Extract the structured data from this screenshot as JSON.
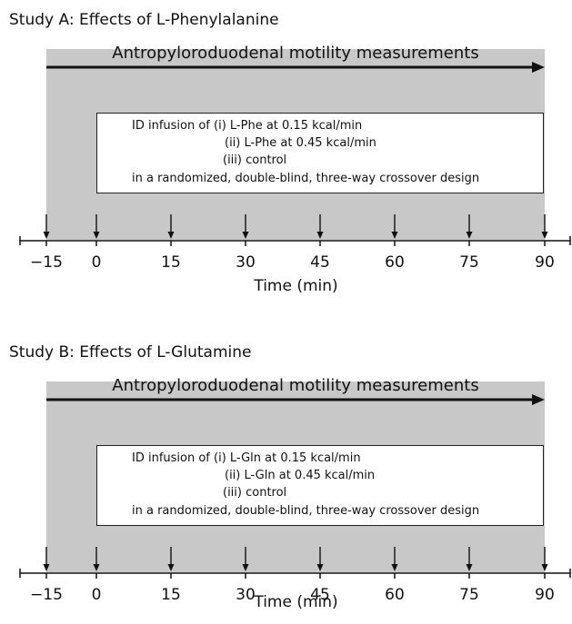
{
  "colors": {
    "band": "#c8c8c8",
    "box_border": "#222222",
    "ink": "#111111"
  },
  "panels": [
    {
      "title": "Study A: Effects of L-Phenylalanine",
      "measurements_label": "Antropyloroduodenal motility measurements",
      "design_lines": [
        "ID infusion of (i) L-Phe at 0.15 kcal/min",
        "(ii) L-Phe at 0.45 kcal/min",
        "(iii) control",
        "in a randomized, double-blind, three-way crossover design"
      ],
      "axis": {
        "tick_labels": [
          "−15",
          "0",
          "15",
          "30",
          "45",
          "60",
          "75",
          "90"
        ],
        "title": "Time (min)"
      }
    },
    {
      "title": "Study B: Effects of L-Glutamine",
      "measurements_label": "Antropyloroduodenal motility measurements",
      "design_lines": [
        "ID infusion of (i) L-Gln at 0.15 kcal/min",
        "(ii) L-Gln at 0.45 kcal/min",
        "(iii) control",
        "in a randomized, double-blind, three-way crossover design"
      ],
      "axis": {
        "tick_labels": [
          "−15",
          "0",
          "15",
          "30",
          "45",
          "60",
          "75",
          "90"
        ],
        "title": "Time (min)"
      }
    }
  ]
}
